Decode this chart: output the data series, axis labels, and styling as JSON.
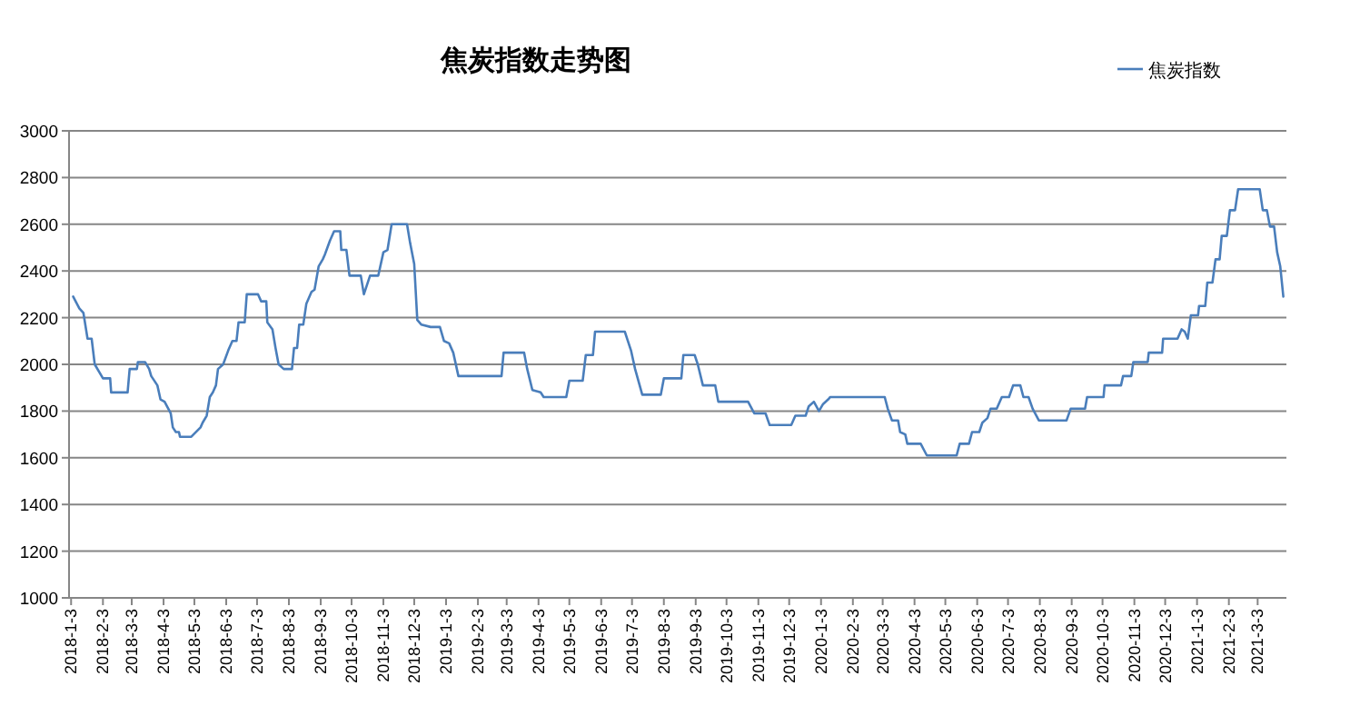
{
  "chart_data": {
    "type": "line",
    "title": "焦炭指数走势图",
    "legend": "top right",
    "grid": "y",
    "ylim": [
      1000,
      3000
    ],
    "yticks": [
      1000,
      1200,
      1400,
      1600,
      1800,
      2000,
      2200,
      2400,
      2600,
      2800,
      3000
    ],
    "xlim": [
      "2018-01-01",
      "2021-03-31"
    ],
    "xticks": [
      {
        "value": "2018-01-03",
        "label": "2018-1-3"
      },
      {
        "value": "2018-02-03",
        "label": "2018-2-3"
      },
      {
        "value": "2018-03-03",
        "label": "2018-3-3"
      },
      {
        "value": "2018-04-03",
        "label": "2018-4-3"
      },
      {
        "value": "2018-05-03",
        "label": "2018-5-3"
      },
      {
        "value": "2018-06-03",
        "label": "2018-6-3"
      },
      {
        "value": "2018-07-03",
        "label": "2018-7-3"
      },
      {
        "value": "2018-08-03",
        "label": "2018-8-3"
      },
      {
        "value": "2018-09-03",
        "label": "2018-9-3"
      },
      {
        "value": "2018-10-03",
        "label": "2018-10-3"
      },
      {
        "value": "2018-11-03",
        "label": "2018-11-3"
      },
      {
        "value": "2018-12-03",
        "label": "2018-12-3"
      },
      {
        "value": "2019-01-03",
        "label": "2019-1-3"
      },
      {
        "value": "2019-02-03",
        "label": "2019-2-3"
      },
      {
        "value": "2019-03-03",
        "label": "2019-3-3"
      },
      {
        "value": "2019-04-03",
        "label": "2019-4-3"
      },
      {
        "value": "2019-05-03",
        "label": "2019-5-3"
      },
      {
        "value": "2019-06-03",
        "label": "2019-6-3"
      },
      {
        "value": "2019-07-03",
        "label": "2019-7-3"
      },
      {
        "value": "2019-08-03",
        "label": "2019-8-3"
      },
      {
        "value": "2019-09-03",
        "label": "2019-9-3"
      },
      {
        "value": "2019-10-03",
        "label": "2019-10-3"
      },
      {
        "value": "2019-11-03",
        "label": "2019-11-3"
      },
      {
        "value": "2019-12-03",
        "label": "2019-12-3"
      },
      {
        "value": "2020-01-03",
        "label": "2020-1-3"
      },
      {
        "value": "2020-02-03",
        "label": "2020-2-3"
      },
      {
        "value": "2020-03-03",
        "label": "2020-3-3"
      },
      {
        "value": "2020-04-03",
        "label": "2020-4-3"
      },
      {
        "value": "2020-05-03",
        "label": "2020-5-3"
      },
      {
        "value": "2020-06-03",
        "label": "2020-6-3"
      },
      {
        "value": "2020-07-03",
        "label": "2020-7-3"
      },
      {
        "value": "2020-08-03",
        "label": "2020-8-3"
      },
      {
        "value": "2020-09-03",
        "label": "2020-9-3"
      },
      {
        "value": "2020-10-03",
        "label": "2020-10-3"
      },
      {
        "value": "2020-11-03",
        "label": "2020-11-3"
      },
      {
        "value": "2020-12-03",
        "label": "2020-12-3"
      },
      {
        "value": "2021-01-03",
        "label": "2021-1-3"
      },
      {
        "value": "2021-02-03",
        "label": "2021-2-3"
      },
      {
        "value": "2021-03-03",
        "label": "2021-3-3"
      }
    ],
    "series": [
      {
        "name": "焦炭指数",
        "color": "#4a7ebb",
        "x": [
          "2018-01-05",
          "2018-01-11",
          "2018-01-15",
          "2018-01-19",
          "2018-01-23",
          "2018-01-26",
          "2018-02-03",
          "2018-02-10",
          "2018-02-11",
          "2018-02-27",
          "2018-03-01",
          "2018-03-08",
          "2018-03-09",
          "2018-03-16",
          "2018-03-20",
          "2018-03-22",
          "2018-03-28",
          "2018-03-31",
          "2018-04-04",
          "2018-04-10",
          "2018-04-12",
          "2018-04-15",
          "2018-04-18",
          "2018-04-19",
          "2018-04-30",
          "2018-05-09",
          "2018-05-11",
          "2018-05-15",
          "2018-05-18",
          "2018-05-21",
          "2018-05-24",
          "2018-05-26",
          "2018-05-31",
          "2018-06-05",
          "2018-06-09",
          "2018-06-13",
          "2018-06-15",
          "2018-06-21",
          "2018-06-23",
          "2018-07-04",
          "2018-07-07",
          "2018-07-12",
          "2018-07-13",
          "2018-07-18",
          "2018-07-21",
          "2018-07-24",
          "2018-07-29",
          "2018-08-06",
          "2018-08-08",
          "2018-08-11",
          "2018-08-13",
          "2018-08-17",
          "2018-08-20",
          "2018-08-25",
          "2018-08-28",
          "2018-09-01",
          "2018-09-05",
          "2018-09-07",
          "2018-09-12",
          "2018-09-16",
          "2018-09-22",
          "2018-09-23",
          "2018-09-28",
          "2018-10-01",
          "2018-10-12",
          "2018-10-15",
          "2018-10-21",
          "2018-10-29",
          "2018-11-03",
          "2018-11-07",
          "2018-11-11",
          "2018-11-26",
          "2018-11-29",
          "2018-12-03",
          "2018-12-06",
          "2018-12-10",
          "2018-12-19",
          "2018-12-28",
          "2019-01-01",
          "2019-01-06",
          "2019-01-10",
          "2019-01-15",
          "2019-02-26",
          "2019-02-28",
          "2019-03-20",
          "2019-03-23",
          "2019-03-28",
          "2019-04-05",
          "2019-04-08",
          "2019-04-30",
          "2019-05-03",
          "2019-05-16",
          "2019-05-19",
          "2019-05-26",
          "2019-05-28",
          "2019-06-26",
          "2019-06-29",
          "2019-07-02",
          "2019-07-06",
          "2019-07-13",
          "2019-07-31",
          "2019-08-03",
          "2019-08-20",
          "2019-08-22",
          "2019-09-02",
          "2019-09-05",
          "2019-09-10",
          "2019-09-22",
          "2019-09-25",
          "2019-10-24",
          "2019-10-30",
          "2019-11-10",
          "2019-11-14",
          "2019-12-05",
          "2019-12-09",
          "2019-12-19",
          "2019-12-22",
          "2019-12-27",
          "2020-01-01",
          "2020-01-05",
          "2020-01-10",
          "2020-01-12",
          "2020-03-05",
          "2020-03-08",
          "2020-03-12",
          "2020-03-18",
          "2020-03-20",
          "2020-03-25",
          "2020-03-27",
          "2020-04-09",
          "2020-04-15",
          "2020-05-14",
          "2020-05-17",
          "2020-05-26",
          "2020-05-29",
          "2020-06-05",
          "2020-06-08",
          "2020-06-13",
          "2020-06-16",
          "2020-06-22",
          "2020-06-27",
          "2020-07-04",
          "2020-07-08",
          "2020-07-15",
          "2020-07-18",
          "2020-07-23",
          "2020-07-27",
          "2020-08-02",
          "2020-08-29",
          "2020-09-02",
          "2020-09-16",
          "2020-09-18",
          "2020-10-04",
          "2020-10-05",
          "2020-10-21",
          "2020-10-23",
          "2020-10-31",
          "2020-11-02",
          "2020-11-16",
          "2020-11-17",
          "2020-11-30",
          "2020-12-01",
          "2020-12-15",
          "2020-12-19",
          "2020-12-22",
          "2020-12-25",
          "2020-12-28",
          "2021-01-04",
          "2021-01-05",
          "2021-01-11",
          "2021-01-13",
          "2021-01-18",
          "2021-01-21",
          "2021-01-25",
          "2021-01-27",
          "2021-02-01",
          "2021-02-04",
          "2021-02-09",
          "2021-02-12",
          "2021-03-05",
          "2021-03-08",
          "2021-03-12",
          "2021-03-15",
          "2021-03-19",
          "2021-03-22",
          "2021-03-25",
          "2021-03-28"
        ],
        "values": [
          2290,
          2240,
          2220,
          2110,
          2110,
          2000,
          1940,
          1940,
          1880,
          1880,
          1980,
          1980,
          2010,
          2010,
          1980,
          1950,
          1910,
          1850,
          1840,
          1790,
          1730,
          1710,
          1710,
          1690,
          1690,
          1730,
          1750,
          1780,
          1860,
          1880,
          1910,
          1980,
          2000,
          2060,
          2100,
          2100,
          2180,
          2180,
          2300,
          2300,
          2270,
          2270,
          2180,
          2150,
          2070,
          2000,
          1980,
          1980,
          2070,
          2070,
          2170,
          2170,
          2260,
          2310,
          2320,
          2420,
          2450,
          2470,
          2530,
          2570,
          2570,
          2490,
          2490,
          2380,
          2380,
          2300,
          2380,
          2380,
          2480,
          2490,
          2600,
          2600,
          2520,
          2430,
          2190,
          2170,
          2160,
          2160,
          2100,
          2090,
          2050,
          1950,
          1950,
          2050,
          2050,
          1980,
          1890,
          1880,
          1860,
          1860,
          1930,
          1930,
          2040,
          2040,
          2140,
          2140,
          2100,
          2060,
          1980,
          1870,
          1870,
          1940,
          1940,
          2040,
          2040,
          2000,
          1910,
          1910,
          1840,
          1840,
          1790,
          1790,
          1740,
          1740,
          1780,
          1780,
          1820,
          1840,
          1800,
          1830,
          1850,
          1860,
          1860,
          1810,
          1760,
          1760,
          1710,
          1700,
          1660,
          1660,
          1610,
          1610,
          1660,
          1660,
          1710,
          1710,
          1750,
          1770,
          1810,
          1810,
          1860,
          1860,
          1910,
          1910,
          1860,
          1860,
          1810,
          1760,
          1760,
          1810,
          1810,
          1860,
          1860,
          1910,
          1910,
          1950,
          1950,
          2010,
          2010,
          2050,
          2050,
          2110,
          2110,
          2150,
          2140,
          2110,
          2210,
          2210,
          2250,
          2250,
          2350,
          2350,
          2450,
          2450,
          2550,
          2550,
          2660,
          2660,
          2750,
          2750,
          2660,
          2660,
          2590,
          2590,
          2480,
          2420,
          2290
        ]
      }
    ]
  }
}
